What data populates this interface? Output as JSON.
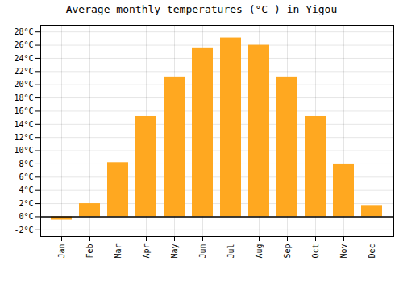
{
  "chart_data": {
    "type": "bar",
    "title": "Average monthly temperatures (°C ) in Yigou",
    "categories": [
      "Jan",
      "Feb",
      "Mar",
      "Apr",
      "May",
      "Jun",
      "Jul",
      "Aug",
      "Sep",
      "Oct",
      "Nov",
      "Dec"
    ],
    "values": [
      -0.5,
      2.0,
      8.2,
      15.2,
      21.2,
      25.6,
      27.1,
      26.0,
      21.2,
      15.2,
      8.0,
      1.6
    ],
    "color": "#FFA820",
    "ylim": [
      -3,
      29
    ],
    "yticks": [
      {
        "value": -2,
        "label": "-2°C"
      },
      {
        "value": 0,
        "label": "0°C"
      },
      {
        "value": 2,
        "label": "2°C"
      },
      {
        "value": 4,
        "label": "4°C"
      },
      {
        "value": 6,
        "label": "6°C"
      },
      {
        "value": 8,
        "label": "8°C"
      },
      {
        "value": 10,
        "label": "10°C"
      },
      {
        "value": 12,
        "label": "12°C"
      },
      {
        "value": 14,
        "label": "14°C"
      },
      {
        "value": 16,
        "label": "16°C"
      },
      {
        "value": 18,
        "label": "18°C"
      },
      {
        "value": 20,
        "label": "20°C"
      },
      {
        "value": 22,
        "label": "22°C"
      },
      {
        "value": 24,
        "label": "24°C"
      },
      {
        "value": 26,
        "label": "26°C"
      },
      {
        "value": 28,
        "label": "28°C"
      }
    ],
    "grid": true
  }
}
